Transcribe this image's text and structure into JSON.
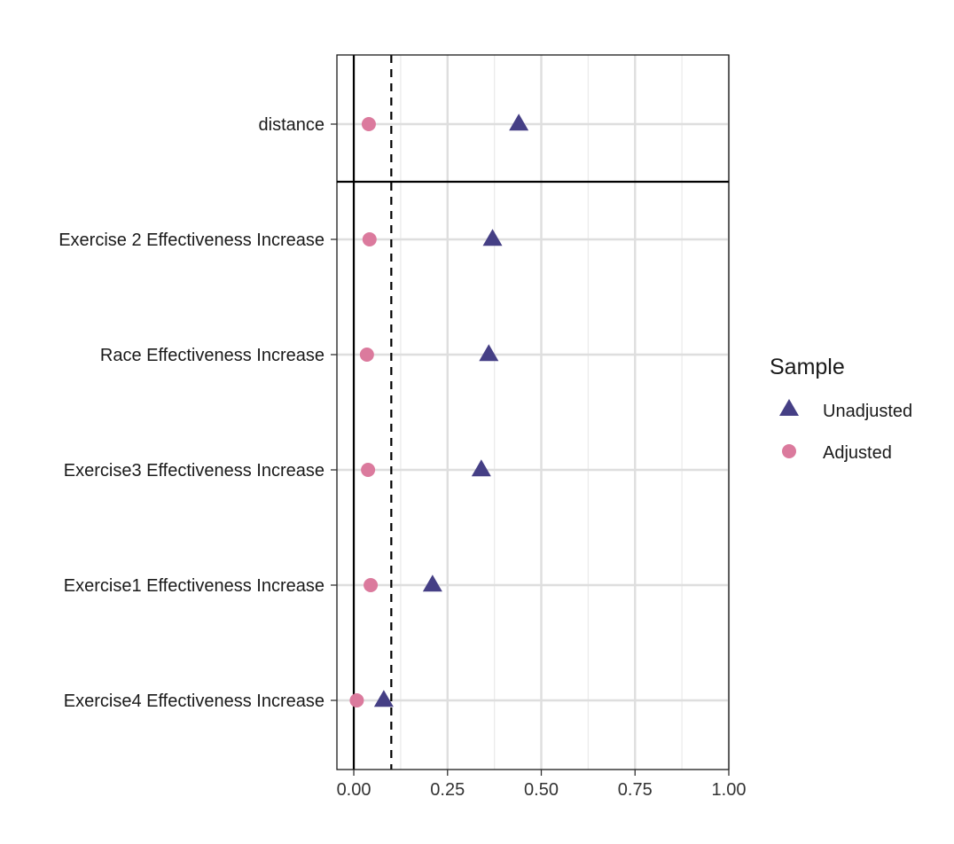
{
  "chart_data": {
    "type": "scatter",
    "title": "",
    "xlabel": "",
    "ylabel": "",
    "xlim": [
      -0.045,
      1.0
    ],
    "xticks": [
      0.0,
      0.25,
      0.5,
      0.75,
      1.0
    ],
    "xtick_labels": [
      "0.00",
      "0.25",
      "0.50",
      "0.75",
      "1.00"
    ],
    "reference_lines": {
      "solid": 0.0,
      "dashed": 0.1
    },
    "grid": true,
    "categories": [
      "distance",
      "Exercise 2 Effectiveness Increase",
      "Race Effectiveness Increase",
      "Exercise3 Effectiveness Increase",
      "Exercise1 Effectiveness Increase",
      "Exercise4 Effectiveness Increase"
    ],
    "series": [
      {
        "name": "Unadjusted",
        "marker": "triangle",
        "color": "#453F85",
        "values": [
          0.44,
          0.37,
          0.36,
          0.34,
          0.21,
          0.08
        ]
      },
      {
        "name": "Adjusted",
        "marker": "circle",
        "color": "#DB7A9D",
        "values": [
          0.04,
          0.042,
          0.035,
          0.038,
          0.045,
          0.008
        ]
      }
    ],
    "legend": {
      "title": "Sample",
      "placement": "right"
    }
  }
}
